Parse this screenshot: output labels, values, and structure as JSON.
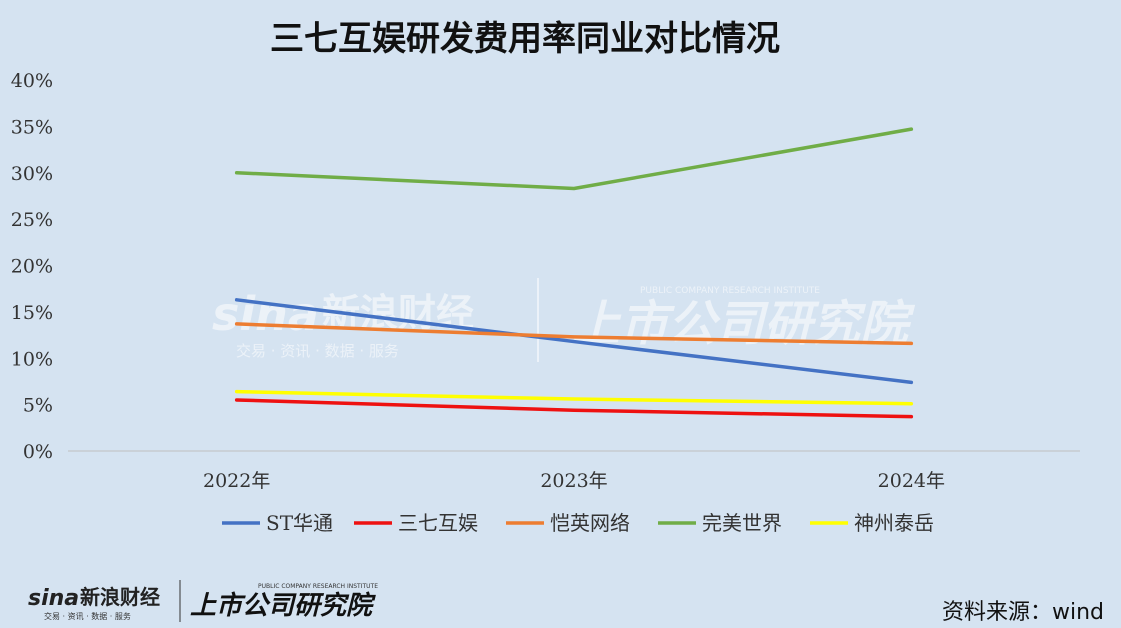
{
  "chart_data": {
    "type": "line",
    "title": "三七互娱研发费用率同业对比情况",
    "categories": [
      "2022年",
      "2023年",
      "2024年"
    ],
    "ylim": [
      0,
      40
    ],
    "y_ticks": [
      "0%",
      "5%",
      "10%",
      "15%",
      "20%",
      "25%",
      "30%",
      "35%",
      "40%"
    ],
    "y_unit": "%",
    "grid": false,
    "legend_position": "bottom",
    "series": [
      {
        "name": "ST华通",
        "color": "#4472c4",
        "values": [
          16.3,
          11.8,
          7.4
        ]
      },
      {
        "name": "三七互娱",
        "color": "#ee1111",
        "values": [
          5.5,
          4.4,
          3.7
        ]
      },
      {
        "name": "恺英网络",
        "color": "#ed7d31",
        "values": [
          13.7,
          12.3,
          11.6
        ]
      },
      {
        "name": "完美世界",
        "color": "#70ad47",
        "values": [
          30.0,
          28.3,
          34.7
        ]
      },
      {
        "name": "神州泰岳",
        "color": "#ffff00",
        "values": [
          6.4,
          5.6,
          5.1
        ]
      }
    ]
  },
  "source": "资料来源：wind",
  "logos": {
    "sina": "sina",
    "sina_cn": "新浪财经",
    "sina_sub": "交易 · 资讯 · 数据 · 服务",
    "institute_cn": "上市公司研究院",
    "institute_en": "PUBLIC COMPANY RESEARCH INSTITUTE"
  }
}
